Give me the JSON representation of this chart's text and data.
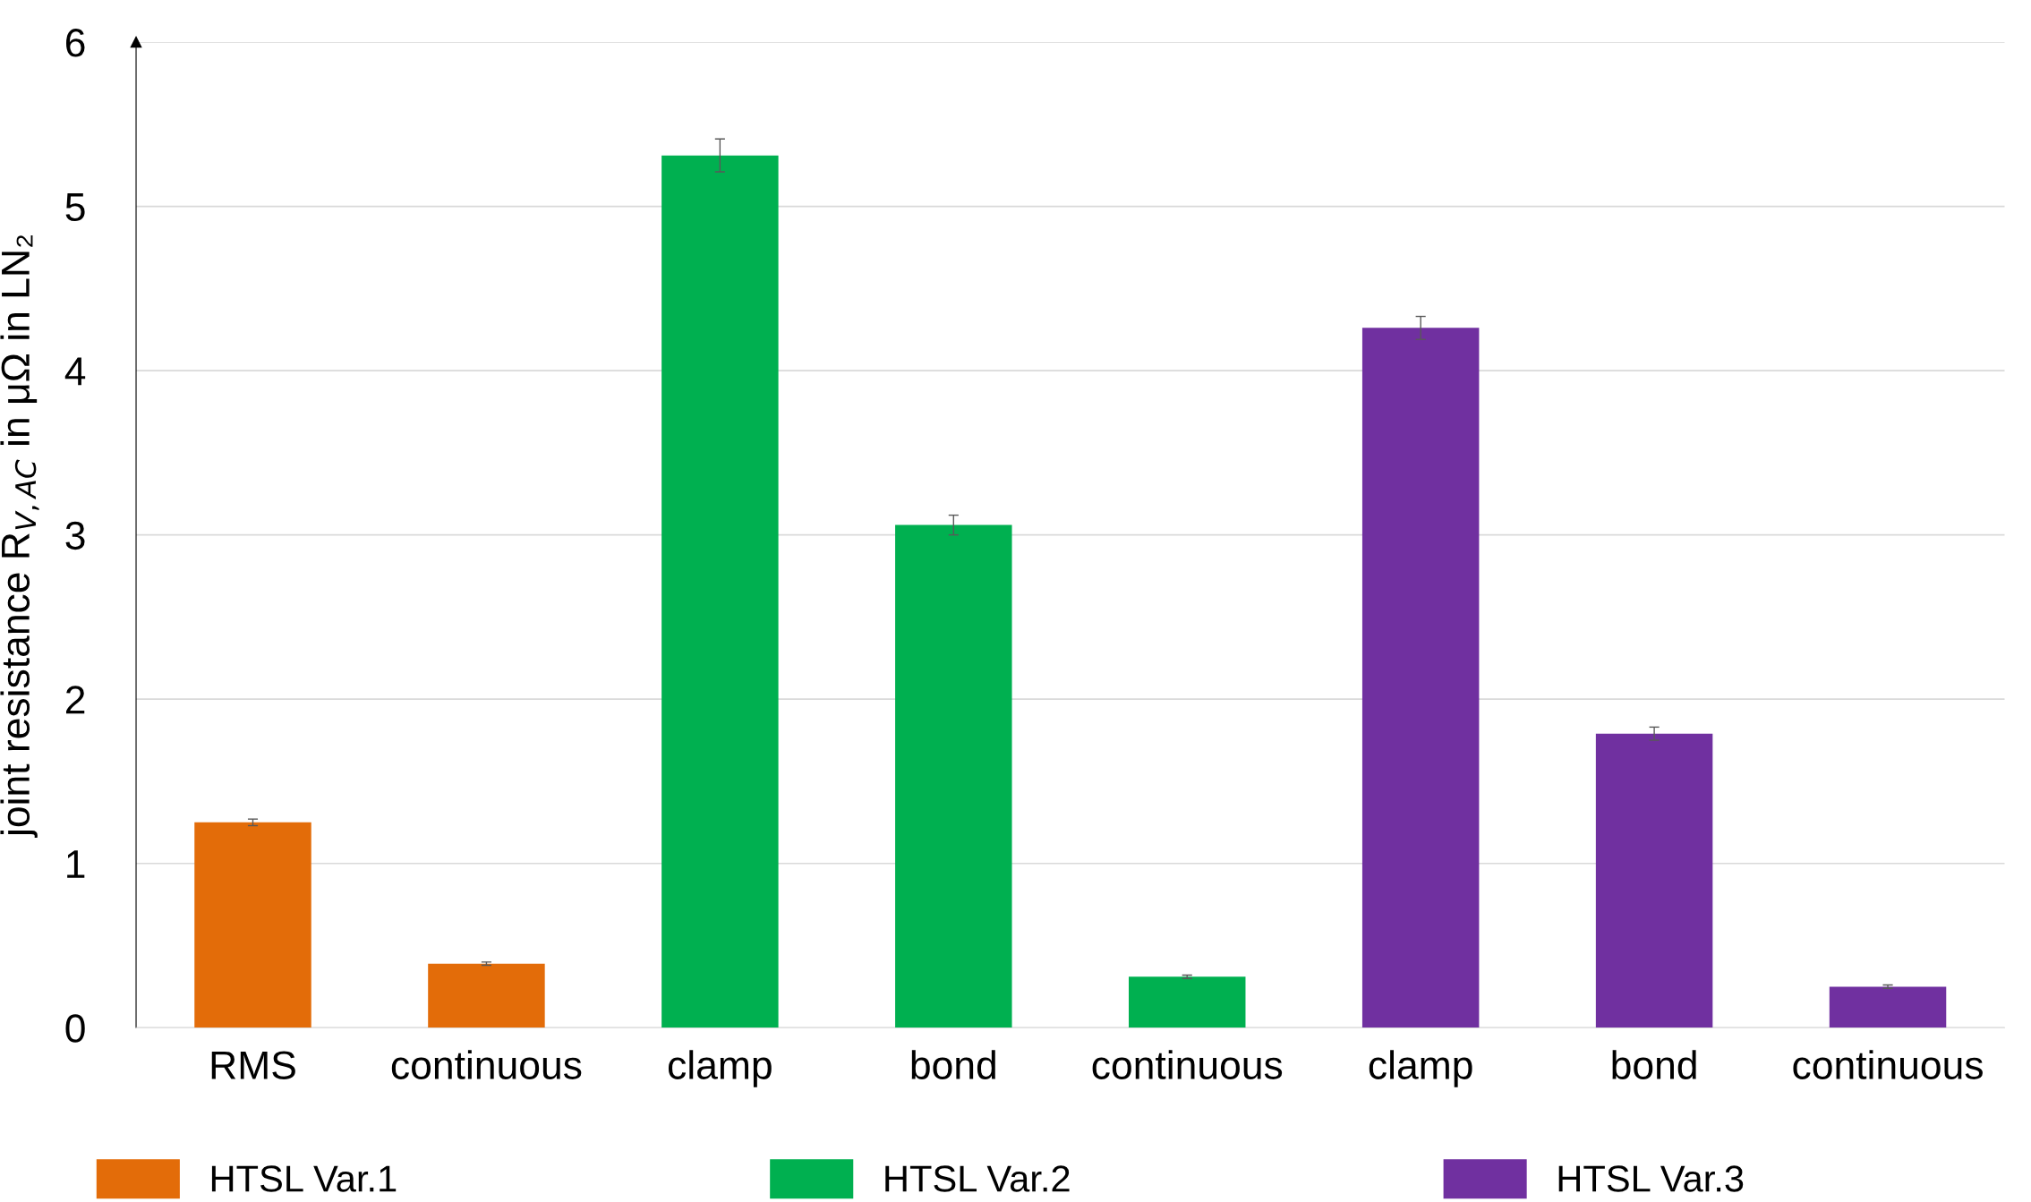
{
  "chart_data": {
    "type": "bar",
    "ylabel": "joint resistance R$_{V,AC}$ in μΩ in LN₂",
    "categories": [
      "RMS",
      "continuous",
      "clamp",
      "bond",
      "continuous",
      "clamp",
      "bond",
      "continuous"
    ],
    "series": [
      {
        "name": "HTSL Var.1",
        "color": "#e36c09",
        "values": [
          1.25,
          0.39,
          null,
          null,
          null,
          null,
          null,
          null
        ],
        "errors": [
          0.02,
          0.01,
          null,
          null,
          null,
          null,
          null,
          null
        ]
      },
      {
        "name": "HTSL Var.2",
        "color": "#00b050",
        "values": [
          null,
          null,
          5.31,
          3.06,
          0.31,
          null,
          null,
          null
        ],
        "errors": [
          null,
          null,
          0.1,
          0.06,
          0.01,
          null,
          null,
          null
        ]
      },
      {
        "name": "HTSL Var.3",
        "color": "#7030a0",
        "values": [
          null,
          null,
          null,
          null,
          null,
          4.26,
          1.79,
          0.25
        ],
        "errors": [
          null,
          null,
          null,
          null,
          null,
          0.07,
          0.04,
          0.01
        ]
      }
    ],
    "ylim": [
      0,
      6
    ],
    "yticks": [
      0,
      1,
      2,
      3,
      4,
      5,
      6
    ],
    "grid": "y",
    "legend": "bottom"
  }
}
